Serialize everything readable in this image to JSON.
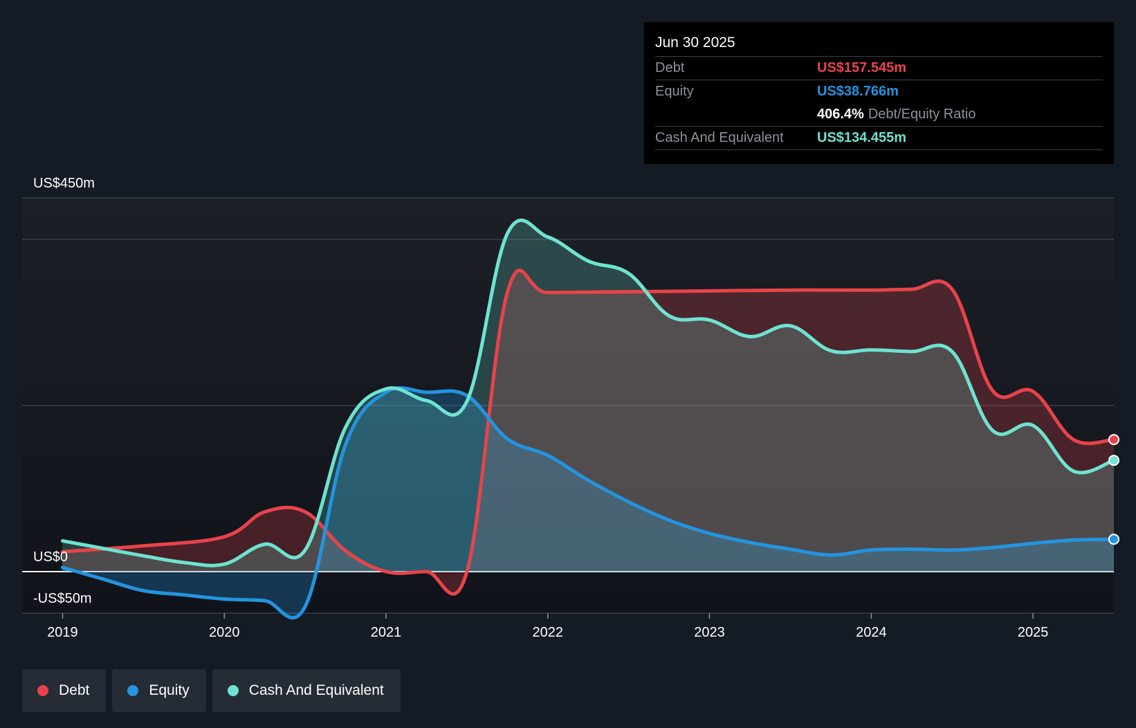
{
  "tooltip": {
    "date": "Jun 30 2025",
    "rows": [
      {
        "label": "Debt",
        "value": "US$157.545m",
        "color": "#e8434a"
      },
      {
        "label": "Equity",
        "value": "US$38.766m",
        "color": "#2394df"
      },
      {
        "ratio_value": "406.4%",
        "ratio_label": "Debt/Equity Ratio"
      },
      {
        "label": "Cash And Equivalent",
        "value": "US$134.455m",
        "color": "#6ee3d1"
      }
    ]
  },
  "legend": [
    {
      "label": "Debt",
      "color": "#e8434a"
    },
    {
      "label": "Equity",
      "color": "#2394df"
    },
    {
      "label": "Cash And Equivalent",
      "color": "#6ee3d1"
    }
  ],
  "chart_data": {
    "type": "area",
    "y_unit": "US$ millions",
    "ylim": [
      -50,
      450
    ],
    "xlim": [
      2018.75,
      2025.5
    ],
    "y_tick_labels": [
      {
        "value": 450,
        "label": "US$450m"
      },
      {
        "value": 0,
        "label": "US$0"
      },
      {
        "value": -50,
        "label": "-US$50m"
      }
    ],
    "x_ticks": [
      2019,
      2020,
      2021,
      2022,
      2023,
      2024,
      2025
    ],
    "x_tick_labels": [
      "2019",
      "2020",
      "2021",
      "2022",
      "2023",
      "2024",
      "2025"
    ],
    "grid": true,
    "series": [
      {
        "name": "Debt",
        "color": "#e8434a",
        "points": [
          [
            2019.0,
            24
          ],
          [
            2019.5,
            31
          ],
          [
            2020.0,
            42
          ],
          [
            2020.25,
            72
          ],
          [
            2020.5,
            72
          ],
          [
            2020.75,
            25
          ],
          [
            2021.0,
            0
          ],
          [
            2021.25,
            0
          ],
          [
            2021.5,
            0
          ],
          [
            2021.75,
            336
          ],
          [
            2022.0,
            336
          ],
          [
            2022.5,
            337
          ],
          [
            2023.0,
            338
          ],
          [
            2023.5,
            339
          ],
          [
            2024.0,
            339
          ],
          [
            2024.25,
            340
          ],
          [
            2024.5,
            340
          ],
          [
            2024.75,
            218
          ],
          [
            2025.0,
            217
          ],
          [
            2025.25,
            159
          ],
          [
            2025.5,
            159
          ]
        ]
      },
      {
        "name": "Equity",
        "color": "#2394df",
        "points": [
          [
            2019.0,
            5
          ],
          [
            2019.25,
            -9
          ],
          [
            2019.5,
            -23
          ],
          [
            2019.75,
            -28
          ],
          [
            2020.0,
            -33
          ],
          [
            2020.25,
            -35
          ],
          [
            2020.5,
            -42
          ],
          [
            2020.75,
            153
          ],
          [
            2021.0,
            216
          ],
          [
            2021.25,
            216
          ],
          [
            2021.5,
            212
          ],
          [
            2021.75,
            160
          ],
          [
            2022.0,
            140
          ],
          [
            2022.25,
            110
          ],
          [
            2022.5,
            84
          ],
          [
            2022.75,
            62
          ],
          [
            2023.0,
            46
          ],
          [
            2023.25,
            35
          ],
          [
            2023.5,
            27
          ],
          [
            2023.75,
            20
          ],
          [
            2024.0,
            26
          ],
          [
            2024.25,
            27
          ],
          [
            2024.5,
            26
          ],
          [
            2024.75,
            29
          ],
          [
            2025.0,
            34
          ],
          [
            2025.25,
            38
          ],
          [
            2025.5,
            39
          ]
        ]
      },
      {
        "name": "Cash And Equivalent",
        "color": "#6ee3d1",
        "points": [
          [
            2019.0,
            37
          ],
          [
            2019.25,
            28
          ],
          [
            2019.5,
            19
          ],
          [
            2019.75,
            11
          ],
          [
            2020.0,
            9
          ],
          [
            2020.25,
            33
          ],
          [
            2020.5,
            26
          ],
          [
            2020.75,
            174
          ],
          [
            2021.0,
            220
          ],
          [
            2021.25,
            206
          ],
          [
            2021.5,
            205
          ],
          [
            2021.75,
            407
          ],
          [
            2022.0,
            403
          ],
          [
            2022.25,
            374
          ],
          [
            2022.5,
            359
          ],
          [
            2022.75,
            308
          ],
          [
            2023.0,
            303
          ],
          [
            2023.25,
            283
          ],
          [
            2023.5,
            296
          ],
          [
            2023.75,
            266
          ],
          [
            2024.0,
            267
          ],
          [
            2024.25,
            265
          ],
          [
            2024.5,
            265
          ],
          [
            2024.75,
            170
          ],
          [
            2025.0,
            176
          ],
          [
            2025.25,
            121
          ],
          [
            2025.5,
            134
          ]
        ]
      }
    ]
  }
}
